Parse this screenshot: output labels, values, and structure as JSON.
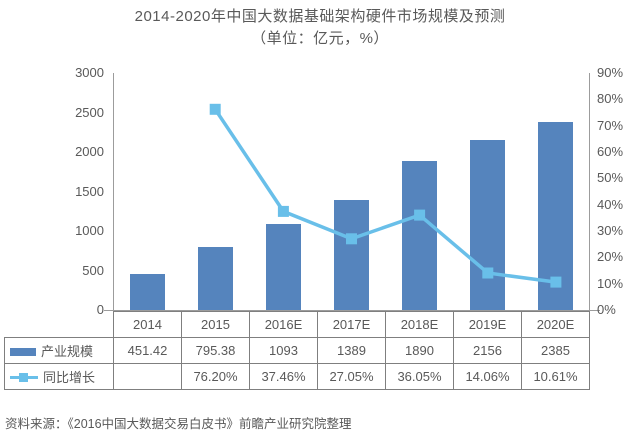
{
  "title": {
    "line1": "2014-2020年中国大数据基础架构硬件市场规模及预测",
    "line2": "（单位：亿元，%）"
  },
  "chart_data": {
    "type": "bar+line",
    "categories": [
      "2014",
      "2015",
      "2016E",
      "2017E",
      "2018E",
      "2019E",
      "2020E"
    ],
    "series": [
      {
        "name": "产业规模",
        "type": "bar",
        "axis": "left",
        "values": [
          451.42,
          795.38,
          1093,
          1389,
          1890,
          2156,
          2385
        ]
      },
      {
        "name": "同比增长",
        "type": "line",
        "axis": "right",
        "unit": "%",
        "values": [
          null,
          76.2,
          37.46,
          27.05,
          36.05,
          14.06,
          10.61
        ]
      }
    ],
    "left_axis": {
      "min": 0,
      "max": 3000,
      "step": 500,
      "ticks": [
        "0",
        "500",
        "1000",
        "1500",
        "2000",
        "2500",
        "3000"
      ]
    },
    "right_axis": {
      "min": 0,
      "max": 90,
      "step": 10,
      "ticks": [
        "0%",
        "10%",
        "20%",
        "30%",
        "40%",
        "50%",
        "60%",
        "70%",
        "80%",
        "90%"
      ]
    },
    "grid": false,
    "legend_position": "table-left"
  },
  "table": {
    "year_header": [
      "2014",
      "2015",
      "2016E",
      "2017E",
      "2018E",
      "2019E",
      "2020E"
    ],
    "rows": [
      {
        "label": "产业规模",
        "swatch": "bar",
        "values": [
          "451.42",
          "795.38",
          "1093",
          "1389",
          "1890",
          "2156",
          "2385"
        ]
      },
      {
        "label": "同比增长",
        "swatch": "line",
        "values": [
          "",
          "76.20%",
          "37.46%",
          "27.05%",
          "36.05%",
          "14.06%",
          "10.61%"
        ]
      }
    ]
  },
  "source": "资料来源：《2016中国大数据交易白皮书》前瞻产业研究院整理",
  "colors": {
    "bar": "#5584BD",
    "line": "#69BFE9",
    "axis": "#9c9c9c",
    "text": "#595959",
    "border": "#7f7f7f"
  }
}
